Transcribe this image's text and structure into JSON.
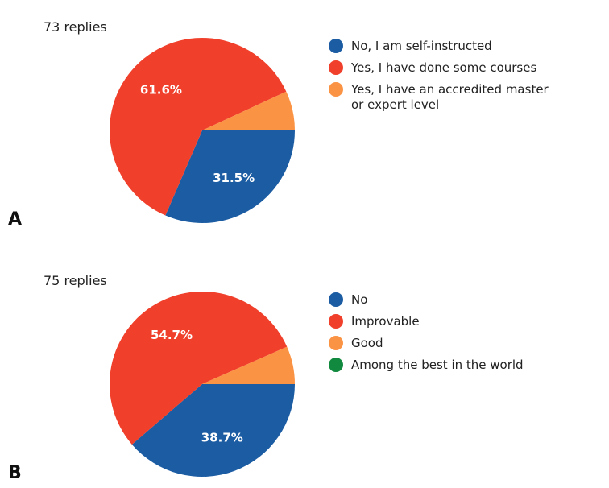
{
  "chart_data": [
    {
      "type": "pie",
      "panel": "A",
      "title": "73 replies",
      "categories": [
        "No, I am self-instructed",
        "Yes, I have done some courses",
        "Yes, I have an accredited master or expert level"
      ],
      "values": [
        31.5,
        61.6,
        6.9
      ],
      "value_labels": [
        "31.5%",
        "61.6%",
        null
      ],
      "colors": [
        "#1b5ca3",
        "#f0402b",
        "#fb9345"
      ]
    },
    {
      "type": "pie",
      "panel": "B",
      "title": "75 replies",
      "categories": [
        "No",
        "Improvable",
        "Good",
        "Among the best in the world"
      ],
      "values": [
        38.7,
        54.7,
        6.6,
        0
      ],
      "value_labels": [
        "38.7%",
        "54.7%",
        null,
        null
      ],
      "colors": [
        "#1b5ca3",
        "#f0402b",
        "#fb9345",
        "#11893e"
      ]
    }
  ]
}
